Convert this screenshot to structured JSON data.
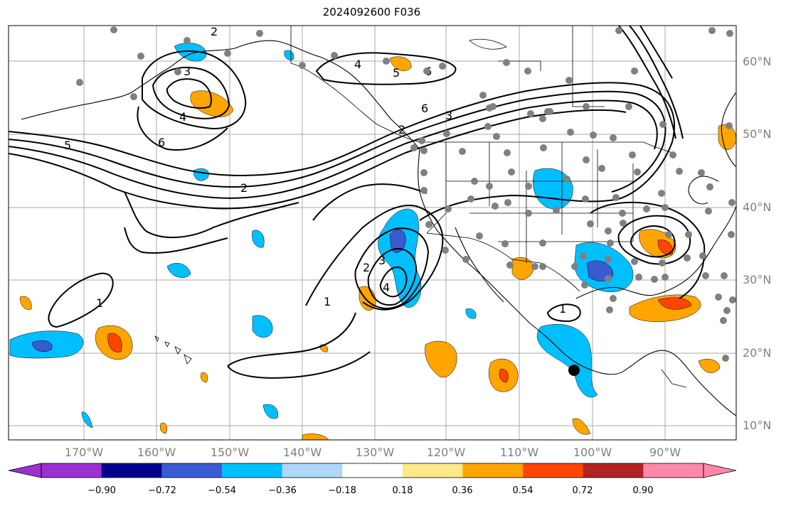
{
  "title": "2024092600 F036",
  "lat_labels": [
    "60°N",
    "50°N",
    "40°N",
    "30°N",
    "20°N",
    "10°N"
  ],
  "lon_labels": [
    "170°W",
    "160°W",
    "150°W",
    "140°W",
    "130°W",
    "120°W",
    "110°W",
    "100°W",
    "90°W"
  ],
  "colorbar": {
    "tick_labels": [
      "−0.90",
      "−0.72",
      "−0.54",
      "−0.36",
      "−0.18",
      "0.18",
      "0.36",
      "0.54",
      "0.72",
      "0.90"
    ],
    "colors": [
      "#9b30d0",
      "#00008b",
      "#3a5bd0",
      "#00bfff",
      "#add8f8",
      "#ffffff",
      "#fde98a",
      "#ffa500",
      "#ff4500",
      "#b22222",
      "#ff88aa"
    ]
  },
  "contour_labels": [
    "5",
    "2",
    "1",
    "1",
    "1",
    "2",
    "3",
    "4",
    "6",
    "6",
    "4",
    "3",
    "2",
    "5",
    "6",
    "4",
    "3",
    "2"
  ],
  "marker": "station-marker"
}
